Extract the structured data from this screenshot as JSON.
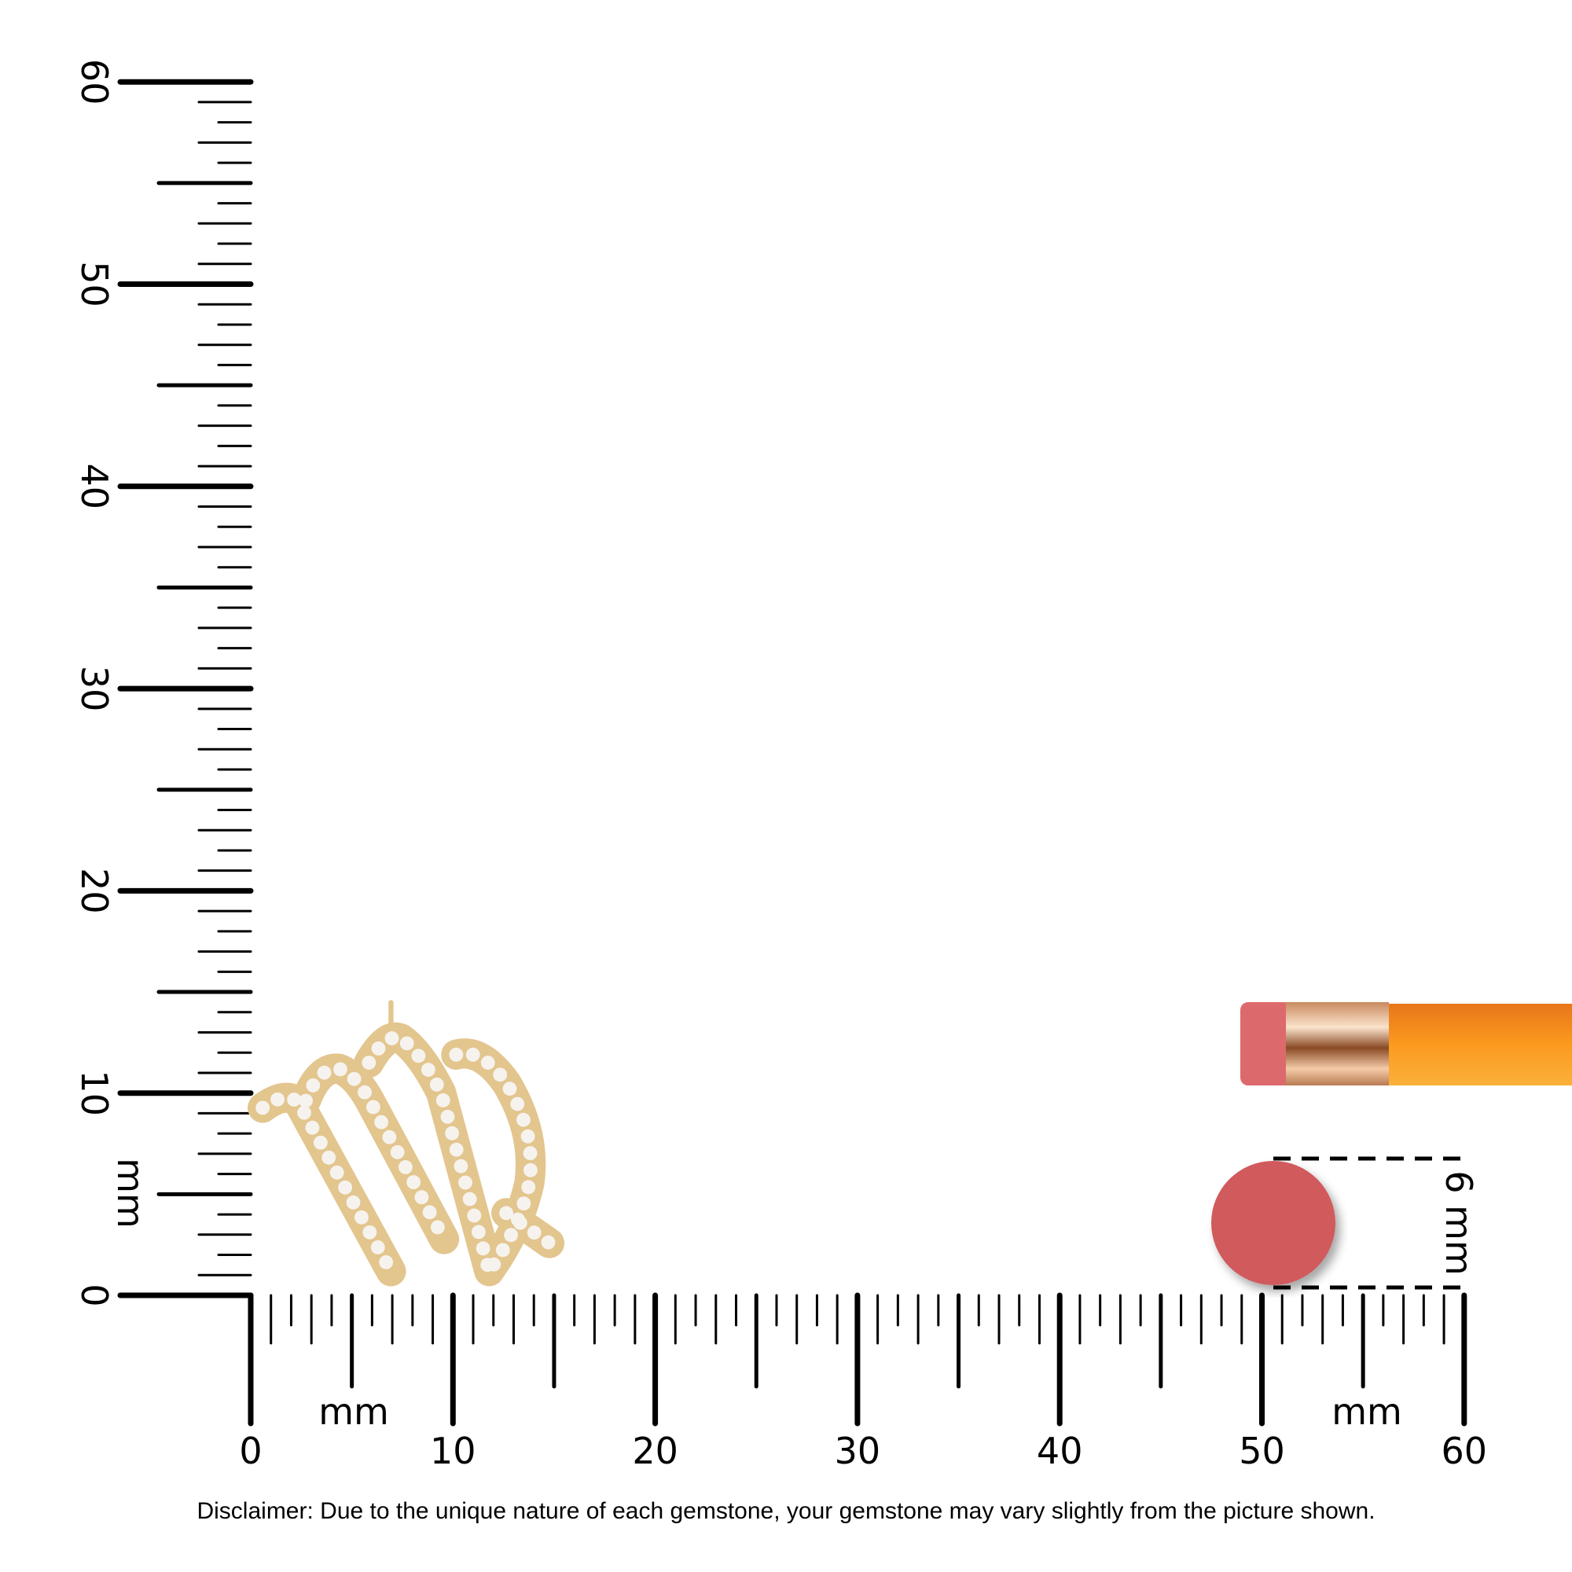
{
  "rulers": {
    "unit": "mm",
    "horizontal": {
      "labels": [
        "0",
        "10",
        "20",
        "30",
        "40",
        "50",
        "60"
      ],
      "unit_labels": [
        "mm",
        "mm"
      ],
      "max_mm": 60
    },
    "vertical": {
      "labels": [
        "0",
        "10",
        "20",
        "30",
        "40",
        "50",
        "60"
      ],
      "unit_label": "mm",
      "max_mm": 60
    }
  },
  "reference": {
    "eraser_dimension": "6 mm",
    "colors": {
      "eraser": "#d05a5c",
      "pencil": "#f7931e",
      "ferrule": "#d9a07a",
      "gold": "#e3c58e"
    }
  },
  "product": {
    "name": "virgo-pendant"
  },
  "disclaimer": "Disclaimer: Due to the unique nature of each gemstone, your gemstone may vary slightly from the picture shown."
}
